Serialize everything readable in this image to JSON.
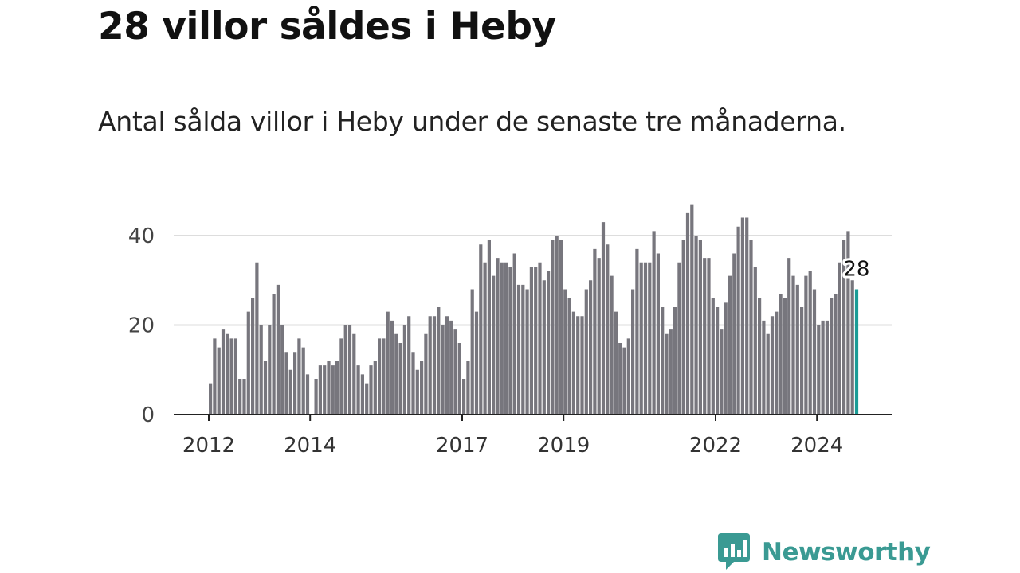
{
  "title": "28 villor såldes i Heby",
  "subtitle": "Antal sålda villor i Heby under de senaste tre månaderna.",
  "logo": {
    "text": "Newsworthy",
    "icon": "newsworthy-logo-icon",
    "color": "#3a9a93"
  },
  "colors": {
    "bar": "#77767d",
    "highlight": "#1a9c96",
    "grid": "#dddddd",
    "axis": "#222222"
  },
  "chart_data": {
    "type": "bar",
    "x_start": "2012-01",
    "x_end": "2024-10",
    "ylim": [
      0,
      48
    ],
    "yticks": [
      0,
      20,
      40
    ],
    "xticks": [
      {
        "label": "2012",
        "date": "2012-01"
      },
      {
        "label": "2014",
        "date": "2014-01"
      },
      {
        "label": "2017",
        "date": "2017-01"
      },
      {
        "label": "2019",
        "date": "2019-01"
      },
      {
        "label": "2022",
        "date": "2022-01"
      },
      {
        "label": "2024",
        "date": "2024-01"
      }
    ],
    "highlight_label": "28",
    "grid": true,
    "values": [
      7,
      17,
      15,
      19,
      18,
      17,
      17,
      8,
      8,
      23,
      26,
      34,
      20,
      12,
      20,
      27,
      29,
      20,
      14,
      10,
      14,
      17,
      15,
      9,
      null,
      8,
      11,
      11,
      12,
      11,
      12,
      17,
      20,
      20,
      18,
      11,
      9,
      7,
      11,
      12,
      17,
      17,
      23,
      21,
      18,
      16,
      20,
      22,
      14,
      10,
      12,
      18,
      22,
      22,
      24,
      20,
      22,
      21,
      19,
      16,
      8,
      12,
      28,
      23,
      38,
      34,
      39,
      31,
      35,
      34,
      34,
      33,
      36,
      29,
      29,
      28,
      33,
      33,
      34,
      30,
      32,
      39,
      40,
      39,
      28,
      26,
      23,
      22,
      22,
      28,
      30,
      37,
      35,
      43,
      38,
      31,
      23,
      16,
      15,
      17,
      28,
      37,
      34,
      34,
      34,
      41,
      36,
      24,
      18,
      19,
      24,
      34,
      39,
      45,
      47,
      40,
      39,
      35,
      35,
      26,
      24,
      19,
      25,
      31,
      36,
      42,
      44,
      44,
      39,
      33,
      26,
      21,
      18,
      22,
      23,
      27,
      26,
      35,
      31,
      29,
      24,
      31,
      32,
      28,
      20,
      21,
      21,
      26,
      27,
      34,
      39,
      41,
      30,
      28
    ]
  }
}
